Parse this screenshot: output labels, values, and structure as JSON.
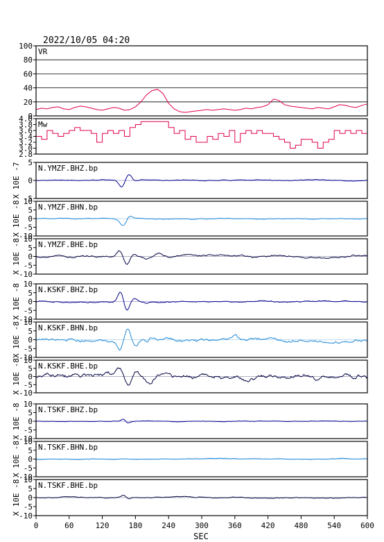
{
  "header": {
    "datetime": "2022/10/05 04:20"
  },
  "xaxis": {
    "label": "SEC",
    "ticks": [
      "0",
      "60",
      "120",
      "180",
      "240",
      "300",
      "360",
      "420",
      "480",
      "540",
      "600"
    ],
    "range": [
      0,
      600
    ]
  },
  "colors": {
    "vr": "#e0004a",
    "mw": "#e0004a",
    "bhz": "#00008b",
    "bhn": "#1e88d6",
    "bhe": "#000040",
    "frame": "#000000"
  },
  "chart_data": [
    {
      "type": "line",
      "name": "VR",
      "ylim": [
        0,
        100
      ],
      "yticks": [
        "0",
        "20",
        "40",
        "60",
        "80",
        "100"
      ],
      "grid": true,
      "x": [
        0,
        10,
        20,
        30,
        40,
        50,
        60,
        70,
        80,
        90,
        100,
        110,
        120,
        130,
        140,
        150,
        160,
        170,
        180,
        190,
        200,
        210,
        220,
        230,
        240,
        250,
        260,
        270,
        280,
        290,
        300,
        310,
        320,
        330,
        340,
        350,
        360,
        370,
        380,
        390,
        400,
        410,
        420,
        430,
        440,
        450,
        460,
        470,
        480,
        490,
        500,
        510,
        520,
        530,
        540,
        550,
        560,
        570,
        580,
        590,
        600
      ],
      "y": [
        9,
        11,
        10,
        12,
        13,
        10,
        9,
        12,
        14,
        13,
        11,
        9,
        8,
        10,
        12,
        11,
        8,
        9,
        13,
        20,
        30,
        36,
        38,
        32,
        18,
        10,
        6,
        5,
        6,
        7,
        8,
        9,
        8,
        9,
        10,
        9,
        8,
        9,
        11,
        10,
        12,
        13,
        16,
        24,
        22,
        16,
        14,
        13,
        12,
        11,
        10,
        12,
        11,
        10,
        13,
        16,
        15,
        13,
        12,
        15,
        17
      ]
    },
    {
      "type": "line",
      "name": "Mw",
      "ylim": [
        2.8,
        4.0
      ],
      "yticks": [
        "2.8",
        "3.0",
        "3.2",
        "3.4",
        "3.6",
        "3.8",
        "4.0"
      ],
      "x": [
        0,
        10,
        20,
        30,
        40,
        50,
        60,
        70,
        80,
        90,
        100,
        110,
        120,
        130,
        140,
        150,
        160,
        170,
        180,
        190,
        200,
        210,
        220,
        230,
        240,
        250,
        260,
        270,
        280,
        290,
        300,
        310,
        320,
        330,
        340,
        350,
        360,
        370,
        380,
        390,
        400,
        410,
        420,
        430,
        440,
        450,
        460,
        470,
        480,
        490,
        500,
        510,
        520,
        530,
        540,
        550,
        560,
        570,
        580,
        590,
        600
      ],
      "y": [
        3.4,
        3.3,
        3.6,
        3.5,
        3.4,
        3.5,
        3.6,
        3.7,
        3.6,
        3.6,
        3.5,
        3.2,
        3.5,
        3.6,
        3.5,
        3.6,
        3.4,
        3.7,
        3.8,
        3.9,
        3.9,
        3.9,
        3.9,
        3.9,
        3.7,
        3.5,
        3.6,
        3.3,
        3.4,
        3.2,
        3.2,
        3.4,
        3.3,
        3.5,
        3.4,
        3.6,
        3.2,
        3.5,
        3.6,
        3.5,
        3.6,
        3.5,
        3.5,
        3.4,
        3.3,
        3.2,
        3.0,
        3.1,
        3.3,
        3.3,
        3.2,
        3.0,
        3.2,
        3.3,
        3.6,
        3.5,
        3.6,
        3.5,
        3.6,
        3.5,
        3.5
      ]
    },
    {
      "type": "line",
      "name": "N.YMZF.BHZ.bp",
      "color": "bhz",
      "ylabel": "X 10E -7",
      "ylim": [
        -5,
        5
      ],
      "yticks": [
        "-5",
        "0",
        "5"
      ],
      "amp": 0.2,
      "wave": [
        [
          155,
          -2.0
        ],
        [
          168,
          1.6
        ],
        [
          180,
          -0.5
        ]
      ],
      "wavewidth": 5
    },
    {
      "type": "line",
      "name": "N.YMZF.BHN.bp",
      "color": "bhn",
      "ylabel": "X 10E -8",
      "ylim": [
        -10,
        10
      ],
      "yticks": [
        "-10",
        "-5",
        "0",
        "5",
        "10"
      ],
      "amp": 0.4,
      "wave": [
        [
          150,
          -1.0
        ],
        [
          158,
          -4.0
        ],
        [
          170,
          1.5
        ]
      ],
      "wavewidth": 5
    },
    {
      "type": "line",
      "name": "N.YMZF.BHE.bp",
      "color": "bhe",
      "ylabel": "X 10E -8",
      "ylim": [
        -10,
        10
      ],
      "yticks": [
        "-10",
        "-5",
        "0",
        "5",
        "10"
      ],
      "amp": 1.0,
      "wave": [
        [
          153,
          4.5
        ],
        [
          163,
          -5.5
        ],
        [
          176,
          1.5
        ],
        [
          200,
          -1.5
        ],
        [
          222,
          1.0
        ]
      ],
      "wavewidth": 6
    },
    {
      "type": "line",
      "name": "N.KSKF.BHZ.bp",
      "color": "bhz",
      "ylabel": "X 10E -8",
      "ylim": [
        -10,
        10
      ],
      "yticks": [
        "-10",
        "-5",
        "0",
        "5",
        "10"
      ],
      "amp": 0.6,
      "wave": [
        [
          153,
          6.0
        ],
        [
          164,
          -5.0
        ],
        [
          177,
          2.0
        ],
        [
          200,
          -1.0
        ]
      ],
      "wavewidth": 5
    },
    {
      "type": "line",
      "name": "N.KSKF.BHN.bp",
      "color": "bhn",
      "ylabel": "X 10E -8",
      "ylim": [
        -10,
        10
      ],
      "yticks": [
        "-10",
        "-5",
        "0",
        "5",
        "10"
      ],
      "amp": 1.6,
      "wave": [
        [
          152,
          -5.5
        ],
        [
          166,
          7.0
        ],
        [
          180,
          -4.0
        ],
        [
          200,
          -2.0
        ],
        [
          360,
          2.5
        ]
      ],
      "wavewidth": 5
    },
    {
      "type": "line",
      "name": "N.KSKF.BHE.bp",
      "color": "bhe",
      "ylabel": "X 10E -8",
      "ylim": [
        -10,
        10
      ],
      "yticks": [
        "-10",
        "-5",
        "0",
        "5",
        "10"
      ],
      "amp": 2.4,
      "wave": [
        [
          153,
          3.5
        ],
        [
          167,
          -7.5
        ],
        [
          182,
          3.0
        ],
        [
          205,
          -3.0
        ]
      ],
      "wavewidth": 6
    },
    {
      "type": "line",
      "name": "N.TSKF.BHZ.bp",
      "color": "bhz",
      "ylabel": "X 10E -8",
      "ylim": [
        -10,
        10
      ],
      "yticks": [
        "-10",
        "-5",
        "0",
        "5",
        "10"
      ],
      "amp": 0.3,
      "wave": [
        [
          158,
          1.5
        ],
        [
          166,
          -1.0
        ]
      ],
      "wavewidth": 4
    },
    {
      "type": "line",
      "name": "N.TSKF.BHN.bp",
      "color": "bhn",
      "ylabel": "X 10E -8",
      "ylim": [
        -10,
        10
      ],
      "yticks": [
        "-10",
        "-5",
        "0",
        "5",
        "10"
      ],
      "amp": 0.3,
      "wave": [],
      "wavewidth": 4
    },
    {
      "type": "line",
      "name": "N.TSKF.BHE.bp",
      "color": "bhe",
      "ylabel": "X 10E -8",
      "ylim": [
        -10,
        10
      ],
      "yticks": [
        "-10",
        "-5",
        "0",
        "5",
        "10"
      ],
      "amp": 0.5,
      "wave": [
        [
          158,
          1.0
        ],
        [
          168,
          -0.8
        ]
      ],
      "wavewidth": 4
    }
  ]
}
